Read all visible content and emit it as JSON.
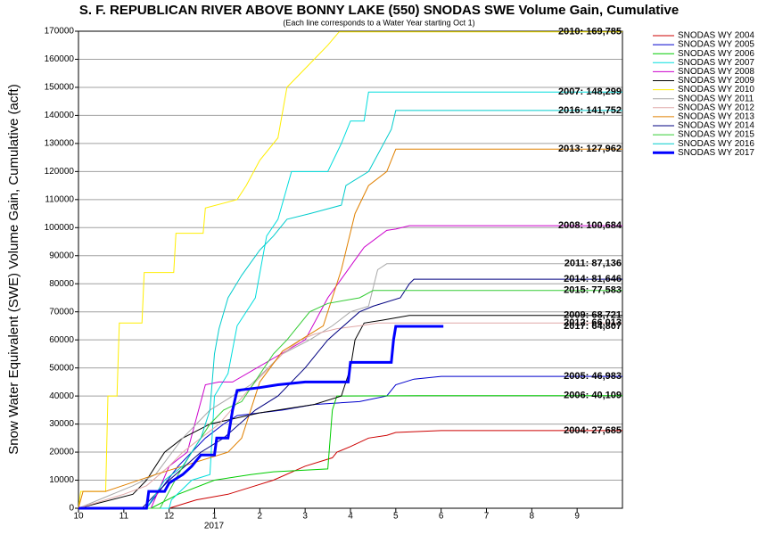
{
  "chart_data": {
    "type": "line",
    "title": "S. F. REPUBLICAN RIVER ABOVE BONNY LAKE (550) SNODAS SWE Volume Gain, Cumulative",
    "subtitle": "(Each line corresponds to a Water Year starting Oct 1)",
    "y_label": "Snow Water Equivalent (SWE) Volume Gain, Cumulative (acft)",
    "x_annotation": "2017",
    "xlim": [
      0,
      12
    ],
    "xticks": [
      {
        "value": 0,
        "label": "10"
      },
      {
        "value": 1,
        "label": "11"
      },
      {
        "value": 2,
        "label": "12"
      },
      {
        "value": 3,
        "label": "1"
      },
      {
        "value": 4,
        "label": "2"
      },
      {
        "value": 5,
        "label": "3"
      },
      {
        "value": 6,
        "label": "4"
      },
      {
        "value": 7,
        "label": "5"
      },
      {
        "value": 8,
        "label": "6"
      },
      {
        "value": 9,
        "label": "7"
      },
      {
        "value": 10,
        "label": "8"
      },
      {
        "value": 11,
        "label": "9"
      }
    ],
    "ylim": [
      0,
      170000
    ],
    "yticks": [
      0,
      10000,
      20000,
      30000,
      40000,
      50000,
      60000,
      70000,
      80000,
      90000,
      100000,
      110000,
      120000,
      130000,
      140000,
      150000,
      160000,
      170000
    ],
    "grid": true,
    "legend": "right",
    "series": [
      {
        "name": "SNODAS WY 2004",
        "color": "#cc0000",
        "end_label": "2004: 27,685",
        "x": [
          0,
          2.0,
          2.6,
          3.3,
          3.9,
          4.3,
          5.0,
          5.6,
          5.7,
          6.0,
          6.4,
          6.8,
          7.0,
          8.0,
          12
        ],
        "values": [
          0,
          0,
          3000,
          5000,
          8000,
          10000,
          15000,
          18000,
          20000,
          22000,
          25000,
          26000,
          27000,
          27685,
          27685
        ]
      },
      {
        "name": "SNODAS WY 2005",
        "color": "#0000cc",
        "end_label": "2005: 46,983",
        "x": [
          0,
          1.5,
          2.2,
          2.8,
          3.2,
          3.5,
          4.5,
          5.2,
          6.2,
          6.8,
          7.0,
          7.4,
          8.0,
          12
        ],
        "values": [
          0,
          0,
          15000,
          25000,
          30000,
          33000,
          35000,
          37000,
          38000,
          40000,
          44000,
          46000,
          46983,
          46983
        ]
      },
      {
        "name": "SNODAS WY 2006",
        "color": "#00cc00",
        "end_label": "2006: 40,109",
        "x": [
          0,
          1.6,
          2.2,
          3.0,
          3.8,
          4.3,
          5.5,
          5.6,
          5.7,
          7.5,
          12
        ],
        "values": [
          0,
          0,
          5000,
          10000,
          12000,
          13000,
          14000,
          35000,
          40000,
          40109,
          40109
        ]
      },
      {
        "name": "SNODAS WY 2007",
        "color": "#00dddd",
        "end_label": "2007: 148,299",
        "x": [
          0,
          2.0,
          2.05,
          2.5,
          2.9,
          3.0,
          3.3,
          3.5,
          3.9,
          4.15,
          4.4,
          4.7,
          5.5,
          5.8,
          6.0,
          6.3,
          6.4,
          12
        ],
        "values": [
          0,
          0,
          3000,
          10000,
          12000,
          40000,
          48000,
          65000,
          75000,
          97000,
          103000,
          120000,
          120000,
          130000,
          138000,
          138000,
          148299,
          148299
        ]
      },
      {
        "name": "SNODAS WY 2008",
        "color": "#cc00cc",
        "end_label": "2008: 100,684",
        "x": [
          0,
          1.6,
          2.0,
          2.4,
          2.8,
          3.1,
          3.4,
          5.0,
          5.5,
          6.3,
          6.8,
          7.0,
          7.3,
          12
        ],
        "values": [
          0,
          0,
          15000,
          20000,
          44000,
          45000,
          45000,
          60000,
          75000,
          93000,
          99000,
          99500,
          100684,
          100684
        ]
      },
      {
        "name": "SNODAS WY 2009",
        "color": "#000000",
        "end_label": "2009: 68,721",
        "x": [
          0,
          1.2,
          1.5,
          1.9,
          2.3,
          2.9,
          4.0,
          5.2,
          5.8,
          6.0,
          6.1,
          6.3,
          6.7,
          7.3,
          12
        ],
        "values": [
          0,
          5000,
          10000,
          20000,
          25000,
          30000,
          34000,
          37000,
          40000,
          50000,
          60000,
          66000,
          67000,
          68721,
          68721
        ]
      },
      {
        "name": "SNODAS WY 2010",
        "color": "#ffee00",
        "end_label": "2010: 169,785",
        "x": [
          0,
          0.05,
          0.6,
          0.65,
          0.85,
          0.9,
          1.4,
          1.45,
          2.1,
          2.15,
          2.75,
          2.8,
          3.5,
          3.7,
          4.0,
          4.4,
          4.6,
          5.2,
          5.5,
          5.75,
          12
        ],
        "values": [
          0,
          6000,
          6000,
          40000,
          40000,
          66000,
          66000,
          84000,
          84000,
          98000,
          98000,
          107000,
          110000,
          115000,
          124000,
          132000,
          150000,
          160000,
          165000,
          169785,
          169785
        ]
      },
      {
        "name": "SNODAS WY 2011",
        "color": "#a8a8a8",
        "end_label": "2011: 87,136",
        "x": [
          0,
          1.2,
          1.7,
          2.3,
          2.9,
          3.8,
          4.5,
          5.1,
          5.6,
          6.0,
          6.4,
          6.6,
          6.8,
          12
        ],
        "values": [
          0,
          8000,
          12000,
          25000,
          35000,
          44000,
          55000,
          60000,
          65000,
          70000,
          72000,
          85000,
          87136,
          87136
        ]
      },
      {
        "name": "SNODAS WY 2012",
        "color": "#e0a8a8",
        "end_label": "2012: 66,013",
        "x": [
          0,
          1.0,
          1.5,
          2.0,
          2.3,
          2.7,
          3.1,
          3.9,
          4.5,
          4.9,
          5.2,
          5.7,
          6.2,
          6.6,
          12
        ],
        "values": [
          0,
          5000,
          8000,
          15000,
          20000,
          25000,
          30000,
          45000,
          55000,
          60000,
          62000,
          64000,
          65000,
          66013,
          66013
        ]
      },
      {
        "name": "SNODAS WY 2013",
        "color": "#e08000",
        "end_label": "2013: 127,962",
        "x": [
          0,
          0.1,
          0.6,
          1.7,
          3.3,
          3.6,
          4.0,
          4.5,
          5.4,
          5.8,
          6.1,
          6.4,
          6.8,
          7.0,
          12
        ],
        "values": [
          0,
          6000,
          6000,
          12000,
          20000,
          25000,
          45000,
          56000,
          65000,
          85000,
          105000,
          115000,
          120000,
          127962,
          127962
        ]
      },
      {
        "name": "SNODAS WY 2014",
        "color": "#000080",
        "end_label": "2014: 81,646",
        "x": [
          0,
          1.4,
          2.0,
          2.7,
          3.2,
          3.9,
          4.4,
          5.0,
          5.5,
          6.2,
          6.5,
          7.1,
          7.3,
          7.4,
          12
        ],
        "values": [
          0,
          0,
          10000,
          20000,
          25000,
          35000,
          40000,
          50000,
          60000,
          70000,
          72000,
          75000,
          80000,
          81646,
          81646
        ]
      },
      {
        "name": "SNODAS WY 2015",
        "color": "#33cc33",
        "end_label": "2015: 77,583",
        "x": [
          0,
          1.8,
          2.2,
          2.5,
          2.9,
          3.2,
          3.6,
          4.3,
          4.6,
          5.1,
          5.5,
          6.2,
          6.5,
          12
        ],
        "values": [
          0,
          0,
          12000,
          20000,
          30000,
          35000,
          38000,
          55000,
          60000,
          70000,
          73000,
          75000,
          77583,
          77583
        ]
      },
      {
        "name": "SNODAS WY 2016",
        "color": "#00cccc",
        "end_label": "2016: 141,752",
        "x": [
          0,
          1.5,
          1.9,
          2.3,
          2.7,
          2.9,
          3.0,
          3.1,
          3.3,
          3.6,
          4.0,
          4.3,
          4.6,
          5.1,
          5.8,
          5.9,
          6.4,
          6.9,
          7.0,
          12
        ],
        "values": [
          0,
          0,
          10000,
          15000,
          25000,
          35000,
          55000,
          64000,
          75000,
          83000,
          92000,
          97000,
          103000,
          105000,
          108000,
          115000,
          120000,
          135000,
          141752,
          141752
        ]
      },
      {
        "name": "SNODAS WY 2017",
        "color": "#0000ff",
        "line_width": 3,
        "end_label": "2017: 64,807",
        "x": [
          0,
          1.5,
          1.55,
          1.9,
          2.0,
          2.3,
          2.5,
          2.7,
          3.0,
          3.05,
          3.3,
          3.4,
          3.5,
          4.0,
          4.4,
          5.0,
          5.95,
          6.0,
          6.9,
          6.95,
          7.0,
          8.05
        ],
        "values": [
          0,
          0,
          6000,
          6000,
          9000,
          12000,
          15000,
          19000,
          19000,
          25000,
          25000,
          35000,
          42000,
          43000,
          44000,
          45000,
          45000,
          52000,
          52000,
          60000,
          64807,
          64807
        ]
      }
    ]
  }
}
